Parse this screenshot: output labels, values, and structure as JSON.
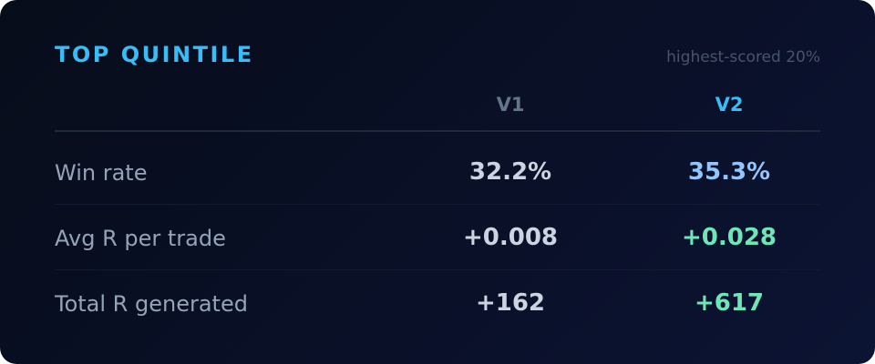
{
  "header": {
    "title": "TOP QUINTILE",
    "subtitle": "highest-scored 20%"
  },
  "table": {
    "columns": [
      "V1",
      "V2"
    ],
    "rows": [
      [
        "Win rate",
        "32.2%",
        "35.3%"
      ],
      [
        "Avg R per trade",
        "+0.008",
        "+0.028"
      ],
      [
        "Total R generated",
        "+162",
        "+617"
      ]
    ]
  }
}
